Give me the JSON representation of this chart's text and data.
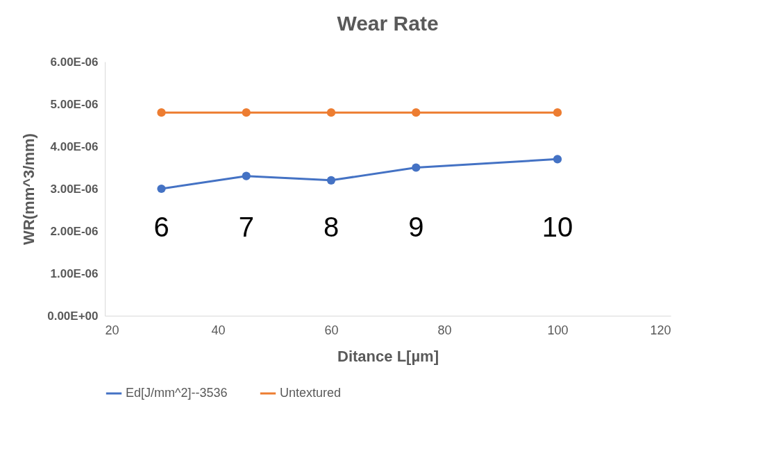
{
  "chart_data": {
    "type": "line",
    "title": "Wear Rate",
    "xlabel": "Ditance L[µm]",
    "ylabel": "WR(mm^3/mm)",
    "x": [
      30,
      45,
      60,
      75,
      100
    ],
    "series": [
      {
        "name": "Ed[J/mm^2]--3536",
        "color": "#4472c4",
        "values": [
          3e-06,
          3.3e-06,
          3.2e-06,
          3.5e-06,
          3.7e-06
        ]
      },
      {
        "name": "Untextured",
        "color": "#ed7d31",
        "values": [
          4.8e-06,
          4.8e-06,
          4.8e-06,
          4.8e-06,
          4.8e-06
        ]
      }
    ],
    "xlim": [
      20,
      120
    ],
    "xticks": [
      20,
      40,
      60,
      80,
      100,
      120
    ],
    "ylim": [
      0,
      6e-06
    ],
    "yticks": [
      {
        "value": 0,
        "label": "0.00E+00"
      },
      {
        "value": 1e-06,
        "label": "1.00E-06"
      },
      {
        "value": 2e-06,
        "label": "2.00E-06"
      },
      {
        "value": 3e-06,
        "label": "3.00E-06"
      },
      {
        "value": 4e-06,
        "label": "4.00E-06"
      },
      {
        "value": 5e-06,
        "label": "5.00E-06"
      },
      {
        "value": 6e-06,
        "label": "6.00E-06"
      }
    ],
    "annotations": [
      "6",
      "7",
      "8",
      "9",
      "10"
    ],
    "marker": "circle",
    "legend": "bottom"
  }
}
